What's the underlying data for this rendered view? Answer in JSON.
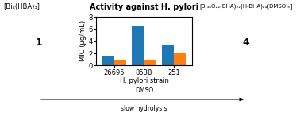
{
  "chart_data": {
    "type": "bar",
    "title": "Activity against H. pylori",
    "categories": [
      "26695",
      "8538",
      "251"
    ],
    "series": [
      {
        "values": [
          1.5,
          6.5,
          3.5
        ]
      },
      {
        "values": [
          0.8,
          0.8,
          2.0
        ]
      }
    ],
    "x_label": "H. pylori strain",
    "y_label": "MIC (μg/mL)",
    "ylim": [
      0,
      8
    ],
    "yticks": [
      0,
      2,
      4,
      6,
      8
    ],
    "annotations": [
      "[Bi₂(HBA)₃]",
      "1",
      "[Bi₃₄O₂₂(BHA)₂₂(H-BHA)₁₄(DMSO)₆]",
      "4",
      "DMSO",
      "slow hydrolysis"
    ]
  }
}
